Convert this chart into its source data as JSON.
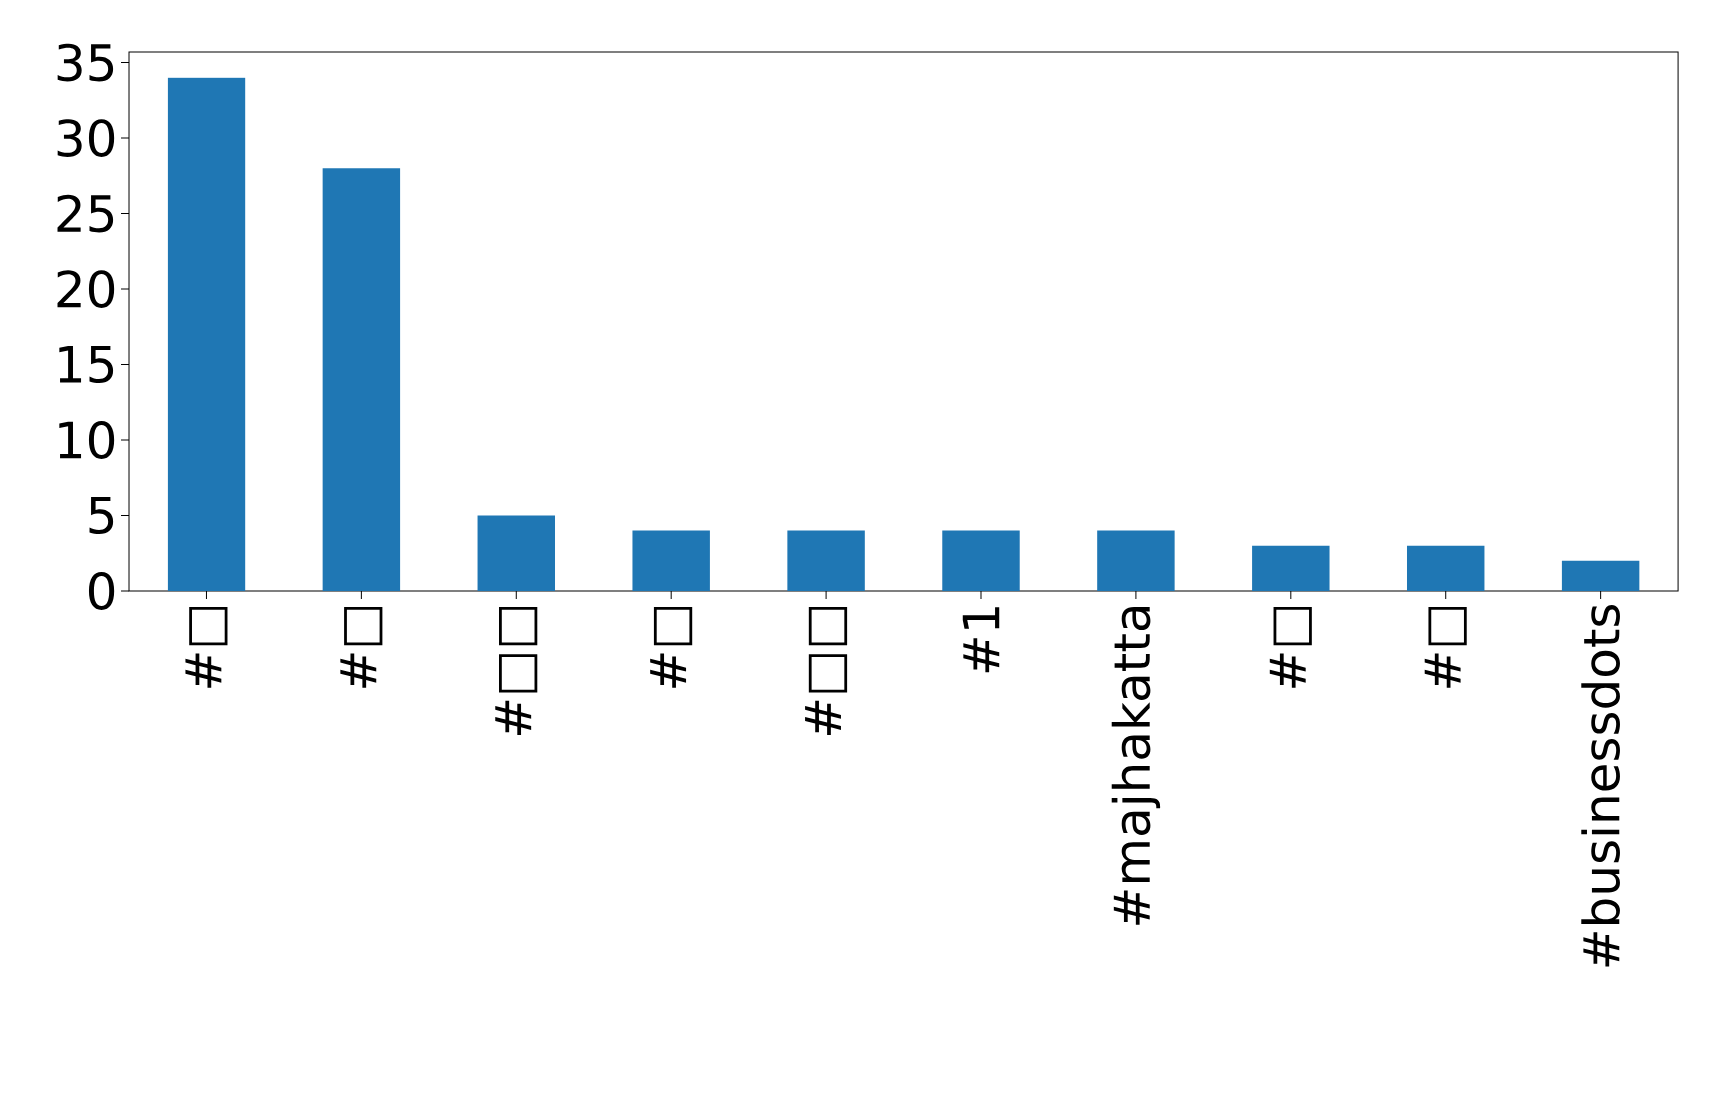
{
  "chart_data": {
    "type": "bar",
    "categories": [
      "#□",
      "#□",
      "#□□",
      "#□",
      "#□□",
      "#1",
      "#majhakatta",
      "#□",
      "#□",
      "#businessdots"
    ],
    "values": [
      34,
      28,
      5,
      4,
      4,
      4,
      4,
      3,
      3,
      2
    ],
    "color": "#1f77b4",
    "ylim": [
      0,
      35.7
    ],
    "yticks": [
      0,
      5,
      10,
      15,
      20,
      25,
      30,
      35
    ],
    "grid": false
  }
}
